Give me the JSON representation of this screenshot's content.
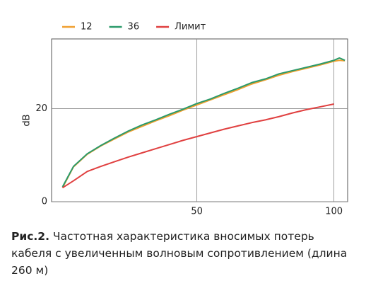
{
  "chart_data": {
    "type": "line",
    "ylabel": "dB",
    "x": [
      1,
      5,
      10,
      15,
      20,
      25,
      30,
      35,
      40,
      45,
      50,
      55,
      60,
      65,
      70,
      75,
      80,
      85,
      90,
      95,
      100,
      102,
      104
    ],
    "series": [
      {
        "name": "12",
        "color": "#f0a030",
        "values": [
          3,
          7.5,
          10.2,
          12,
          13.5,
          15,
          16.2,
          17.4,
          18.5,
          19.7,
          20.8,
          21.9,
          23,
          24.1,
          25.3,
          26.2,
          27.2,
          28,
          28.7,
          29.4,
          30.2,
          30.4,
          30.3
        ]
      },
      {
        "name": "36",
        "color": "#2a9a6a",
        "values": [
          3.2,
          7.6,
          10.3,
          12.1,
          13.7,
          15.2,
          16.5,
          17.6,
          18.8,
          19.9,
          21.1,
          22.1,
          23.3,
          24.4,
          25.6,
          26.4,
          27.5,
          28.2,
          28.9,
          29.6,
          30.4,
          30.9,
          30.4
        ]
      },
      {
        "name": "Лимит",
        "color": "#e04040",
        "values": [
          3,
          4.5,
          6.5,
          7.6,
          8.6,
          9.6,
          10.5,
          11.4,
          12.3,
          13.2,
          14,
          14.8,
          15.6,
          16.3,
          17,
          17.6,
          18.3,
          19.1,
          19.8,
          20.4,
          21,
          null,
          null
        ]
      }
    ],
    "xlim": [
      -3,
      105
    ],
    "ylim": [
      0,
      35
    ],
    "xticks": [
      50,
      100
    ],
    "yticks": [
      0,
      20
    ],
    "grid": true
  },
  "caption": {
    "label": "Рис.2.",
    "text": "Частотная характеристика вносимых потерь кабеля с увеличенным волновым сопротивлением (длина 260 м)"
  }
}
